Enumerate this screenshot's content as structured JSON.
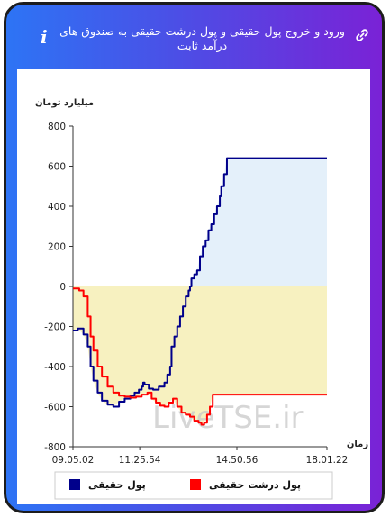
{
  "header": {
    "title": "ورود و خروج پول حقیقی و پول درشت حقیقی به صندوق های درآمد ثابت",
    "info_icon": "i",
    "link_icon": "link-icon"
  },
  "watermark": "LiveTSE.ir",
  "colors": {
    "real_money": "#00008b",
    "big_real_money": "#ff0000",
    "positive_fill": "#e4f0fa",
    "negative_fill": "#f7f1c0"
  },
  "chart_data": {
    "type": "line",
    "ylabel": "میلیارد تومان",
    "xlabel": "زمان",
    "ylim": [
      -800,
      800
    ],
    "yticks": [
      -800,
      -600,
      -400,
      -200,
      0,
      200,
      400,
      600,
      800
    ],
    "x_range": [
      9.08,
      18.02
    ],
    "xticks": [
      {
        "value": 9.08,
        "label": "09.05.02"
      },
      {
        "value": 11.43,
        "label": "11.25.54"
      },
      {
        "value": 14.85,
        "label": "14.50.56"
      },
      {
        "value": 18.02,
        "label": "18.01.22"
      }
    ],
    "legend_position": "bottom",
    "series": [
      {
        "name": "پول حقیقی",
        "color": "#00008b",
        "points": [
          [
            9.08,
            -220
          ],
          [
            9.25,
            -210
          ],
          [
            9.45,
            -240
          ],
          [
            9.6,
            -300
          ],
          [
            9.7,
            -400
          ],
          [
            9.8,
            -470
          ],
          [
            9.95,
            -530
          ],
          [
            10.1,
            -570
          ],
          [
            10.3,
            -590
          ],
          [
            10.5,
            -600
          ],
          [
            10.7,
            -575
          ],
          [
            10.9,
            -560
          ],
          [
            11.1,
            -545
          ],
          [
            11.25,
            -530
          ],
          [
            11.4,
            -515
          ],
          [
            11.5,
            -500
          ],
          [
            11.55,
            -480
          ],
          [
            11.6,
            -490
          ],
          [
            11.75,
            -510
          ],
          [
            11.9,
            -515
          ],
          [
            12.1,
            -500
          ],
          [
            12.3,
            -480
          ],
          [
            12.4,
            -440
          ],
          [
            12.5,
            -400
          ],
          [
            12.55,
            -300
          ],
          [
            12.65,
            -250
          ],
          [
            12.75,
            -200
          ],
          [
            12.85,
            -150
          ],
          [
            12.95,
            -100
          ],
          [
            13.05,
            -50
          ],
          [
            13.15,
            -20
          ],
          [
            13.2,
            0
          ],
          [
            13.25,
            40
          ],
          [
            13.35,
            60
          ],
          [
            13.45,
            80
          ],
          [
            13.55,
            150
          ],
          [
            13.65,
            200
          ],
          [
            13.75,
            230
          ],
          [
            13.85,
            280
          ],
          [
            13.95,
            310
          ],
          [
            14.05,
            360
          ],
          [
            14.15,
            400
          ],
          [
            14.25,
            450
          ],
          [
            14.3,
            500
          ],
          [
            14.4,
            560
          ],
          [
            14.5,
            640
          ],
          [
            15.4,
            640
          ],
          [
            16.2,
            640
          ],
          [
            18.02,
            640
          ]
        ]
      },
      {
        "name": "پول درشت حقیقی",
        "color": "#ff0000",
        "points": [
          [
            9.08,
            -10
          ],
          [
            9.2,
            -10
          ],
          [
            9.3,
            -20
          ],
          [
            9.45,
            -50
          ],
          [
            9.6,
            -150
          ],
          [
            9.7,
            -250
          ],
          [
            9.8,
            -320
          ],
          [
            9.95,
            -400
          ],
          [
            10.1,
            -450
          ],
          [
            10.3,
            -500
          ],
          [
            10.5,
            -530
          ],
          [
            10.7,
            -545
          ],
          [
            10.9,
            -550
          ],
          [
            11.1,
            -555
          ],
          [
            11.3,
            -550
          ],
          [
            11.5,
            -540
          ],
          [
            11.7,
            -530
          ],
          [
            11.85,
            -560
          ],
          [
            12.0,
            -580
          ],
          [
            12.15,
            -595
          ],
          [
            12.3,
            -600
          ],
          [
            12.45,
            -580
          ],
          [
            12.6,
            -560
          ],
          [
            12.75,
            -600
          ],
          [
            12.9,
            -630
          ],
          [
            13.05,
            -640
          ],
          [
            13.2,
            -650
          ],
          [
            13.35,
            -670
          ],
          [
            13.5,
            -680
          ],
          [
            13.6,
            -690
          ],
          [
            13.7,
            -680
          ],
          [
            13.8,
            -640
          ],
          [
            13.9,
            -600
          ],
          [
            14.0,
            -540
          ],
          [
            16.0,
            -540
          ],
          [
            18.02,
            -540
          ]
        ]
      }
    ]
  }
}
